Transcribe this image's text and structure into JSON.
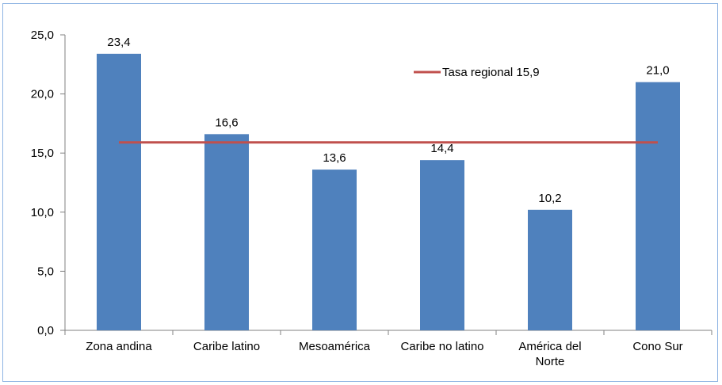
{
  "chart_data": {
    "type": "bar",
    "categories": [
      [
        "Zona andina"
      ],
      [
        "Caribe latino"
      ],
      [
        "Mesoamérica"
      ],
      [
        "Caribe no latino"
      ],
      [
        "América del",
        "Norte"
      ],
      [
        "Cono Sur"
      ]
    ],
    "values": [
      23.4,
      16.6,
      13.6,
      14.4,
      10.2,
      21.0
    ],
    "value_labels": [
      "23,4",
      "16,6",
      "13,6",
      "14,4",
      "10,2",
      "21,0"
    ],
    "reference_line": {
      "name": "Tasa regional 15,9",
      "value": 15.9
    },
    "ylim": [
      0,
      25
    ],
    "yticks": [
      0,
      5,
      10,
      15,
      20,
      25
    ],
    "ytick_labels": [
      "0,0",
      "5,0",
      "10,0",
      "15,0",
      "20,0",
      "25,0"
    ],
    "grid": false,
    "legend_position": "top-right",
    "colors": {
      "bar": "#4f81bd",
      "line": "#c0504d",
      "frame": "#8eb4e3",
      "axis": "#808080"
    }
  }
}
